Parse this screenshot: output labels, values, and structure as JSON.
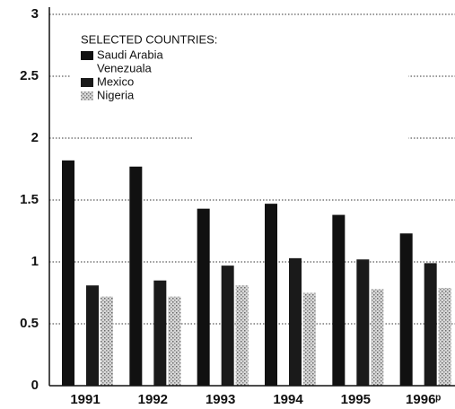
{
  "chart_data": {
    "type": "bar",
    "legend_title": "SELECTED COUNTRIES:",
    "categories": [
      "1991",
      "1992",
      "1993",
      "1994",
      "1995",
      "1996ᵖ"
    ],
    "series": [
      {
        "name": "Saudi Arabia",
        "color": "#111111",
        "values": [
          1.82,
          1.77,
          1.43,
          1.47,
          1.38,
          1.23
        ]
      },
      {
        "name": "Venezuala",
        "color": "#ffffff",
        "values": [
          null,
          null,
          null,
          null,
          null,
          null
        ]
      },
      {
        "name": "Mexico",
        "color": "#1a1a1a",
        "values": [
          0.81,
          0.85,
          0.97,
          1.03,
          1.02,
          0.99
        ]
      },
      {
        "name": "Nigeria",
        "color": "#9a9a9a",
        "values": [
          0.72,
          0.72,
          0.81,
          0.75,
          0.78,
          0.79
        ]
      }
    ],
    "ylim": [
      0,
      3
    ],
    "yticks": [
      0,
      0.5,
      1,
      1.5,
      2,
      2.5,
      3
    ],
    "grid": true
  }
}
